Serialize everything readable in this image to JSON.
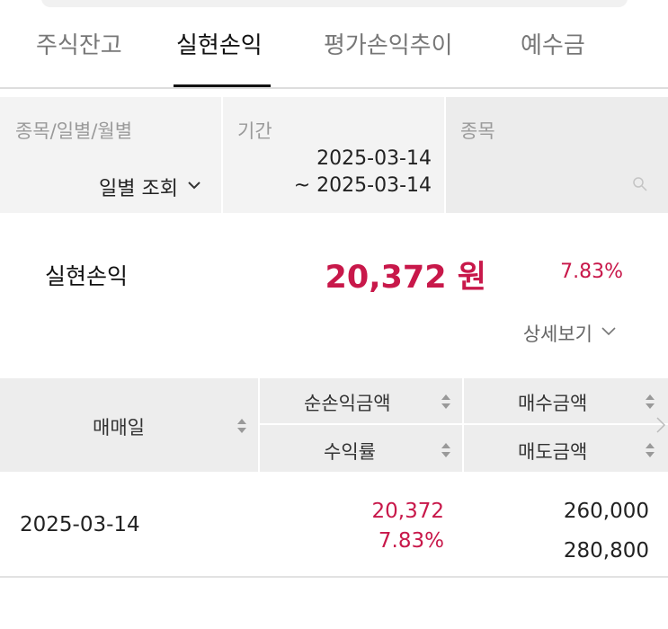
{
  "tabs": [
    "주식잔고",
    "실현손익",
    "평가손익추이",
    "예수금"
  ],
  "active_tab": 1,
  "filters": {
    "type": {
      "label": "종목/일별/월별",
      "value": "일별 조회"
    },
    "period": {
      "label": "기간",
      "from": "2025-03-14",
      "to": "~ 2025-03-14"
    },
    "stock": {
      "label": "종목"
    }
  },
  "summary": {
    "label": "실현손익",
    "amount": "20,372 원",
    "rate": "7.83%"
  },
  "detail_link": "상세보기",
  "table": {
    "headers": {
      "date": "매매일",
      "net_profit": "순손익금액",
      "rate": "수익률",
      "buy_amount": "매수금액",
      "sell_amount": "매도금액"
    },
    "rows": [
      {
        "date": "2025-03-14",
        "net_profit": "20,372",
        "rate": "7.83%",
        "buy_amount": "260,000",
        "sell_amount": "280,800"
      }
    ]
  }
}
